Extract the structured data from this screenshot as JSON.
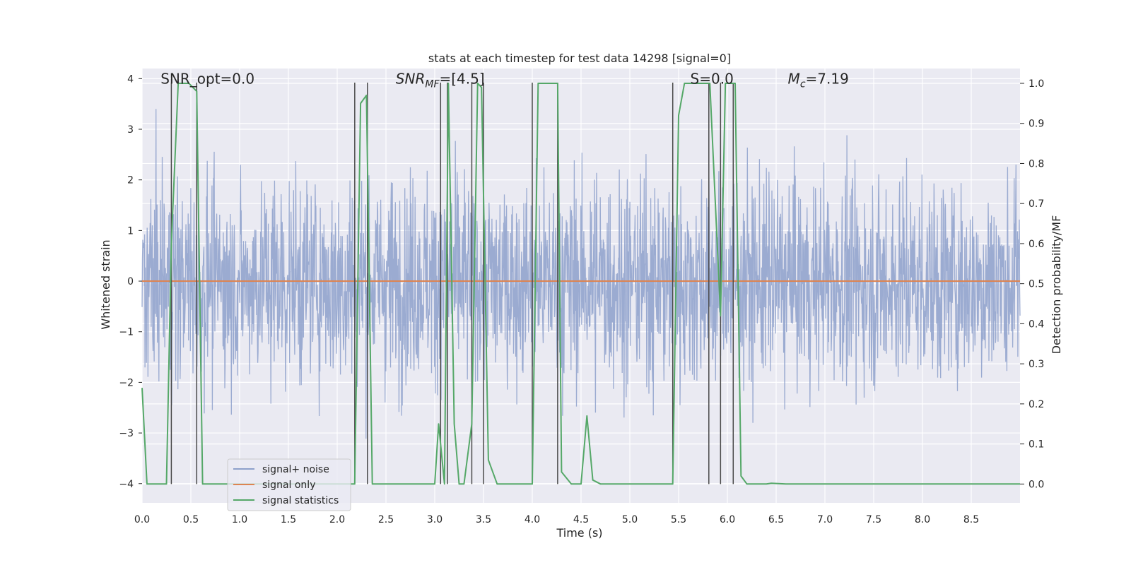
{
  "colors": {
    "background": "#eaeaf2",
    "grid": "#ffffff",
    "signal_noise": "#8da0cb",
    "signal_only": "#dd8452",
    "statistics": "#55a868",
    "vline": "#4a4a4a"
  },
  "chart_data": {
    "type": "line",
    "title": "stats at each timestep for test data 14298 [signal=0]",
    "xlabel": "Time (s)",
    "ylabel_left": "Whitened strain",
    "ylabel_right": "Detection probability/MF",
    "xlim": [
      0,
      9.0
    ],
    "ylim_left": [
      -4.38,
      4.2
    ],
    "ylim_right": [
      -0.047,
      1.037
    ],
    "x_ticks": [
      "0.0",
      "0.5",
      "1.0",
      "1.5",
      "2.0",
      "2.5",
      "3.0",
      "3.5",
      "4.0",
      "4.5",
      "5.0",
      "5.5",
      "6.0",
      "6.5",
      "7.0",
      "7.5",
      "8.0",
      "8.5"
    ],
    "y_ticks_left": [
      "4",
      "3",
      "2",
      "1",
      "0",
      "−1",
      "−2",
      "−3",
      "−4"
    ],
    "y_ticks_right": [
      "1.0",
      "0.9",
      "0.8",
      "0.7",
      "0.6",
      "0.5",
      "0.4",
      "0.3",
      "0.2",
      "0.1",
      "0.0"
    ],
    "annotations": [
      {
        "text": "SNR_opt=0.0",
        "x": 0.19,
        "y": 3.9
      },
      {
        "text": "SNR",
        "sub": "MF",
        "suffix": "=[4.5]",
        "italic": true,
        "x": 2.6,
        "y": 3.9
      },
      {
        "text": "S=0.0",
        "x": 5.62,
        "y": 3.9
      },
      {
        "text": "M",
        "sub": "c",
        "suffix": "=7.19",
        "italic": true,
        "x": 6.62,
        "y": 3.9
      }
    ],
    "legend": {
      "location": "lower-left",
      "entries": [
        {
          "label": "signal+ noise",
          "series": "signal_noise"
        },
        {
          "label": "signal only",
          "series": "signal_only"
        },
        {
          "label": "signal statistics",
          "series": "statistics"
        }
      ]
    },
    "series": [
      {
        "name": "signal+ noise",
        "kind": "noise",
        "time_range": [
          0,
          9.0
        ],
        "typical_amplitude": 1.0,
        "max_amplitude": 3.4
      },
      {
        "name": "signal only",
        "kind": "line",
        "x": [
          0,
          9.0
        ],
        "y": [
          0,
          0
        ]
      },
      {
        "name": "signal statistics",
        "kind": "line",
        "axis": "right",
        "x": [
          0.0,
          0.05,
          0.25,
          0.3,
          0.37,
          0.48,
          0.56,
          0.62,
          1.0,
          2.18,
          2.24,
          2.3,
          2.36,
          2.5,
          3.0,
          3.04,
          3.1,
          3.14,
          3.2,
          3.25,
          3.3,
          3.38,
          3.44,
          3.48,
          3.55,
          3.64,
          4.0,
          4.06,
          4.26,
          4.3,
          4.4,
          4.5,
          4.56,
          4.62,
          4.7,
          5.44,
          5.5,
          5.56,
          5.82,
          5.93,
          5.98,
          6.08,
          6.14,
          6.2,
          6.4,
          6.45,
          6.6,
          9.0
        ],
        "y": [
          0.24,
          0.0,
          0.0,
          0.6,
          1.0,
          1.0,
          0.98,
          0.0,
          0.0,
          0.0,
          0.95,
          0.97,
          0.0,
          0.0,
          0.0,
          0.15,
          0.0,
          1.0,
          0.15,
          0.0,
          0.0,
          0.15,
          1.0,
          0.99,
          0.06,
          0.0,
          0.0,
          1.0,
          1.0,
          0.03,
          0.0,
          0.0,
          0.17,
          0.01,
          0.0,
          0.0,
          0.92,
          1.0,
          1.0,
          0.42,
          1.0,
          1.0,
          0.02,
          0.0,
          0.0,
          0.002,
          0.0,
          0.0
        ]
      }
    ],
    "vertical_markers": [
      0.3,
      0.56,
      2.18,
      2.31,
      3.06,
      3.13,
      3.38,
      3.5,
      4.0,
      4.26,
      5.44,
      5.81,
      5.93,
      6.06
    ]
  }
}
